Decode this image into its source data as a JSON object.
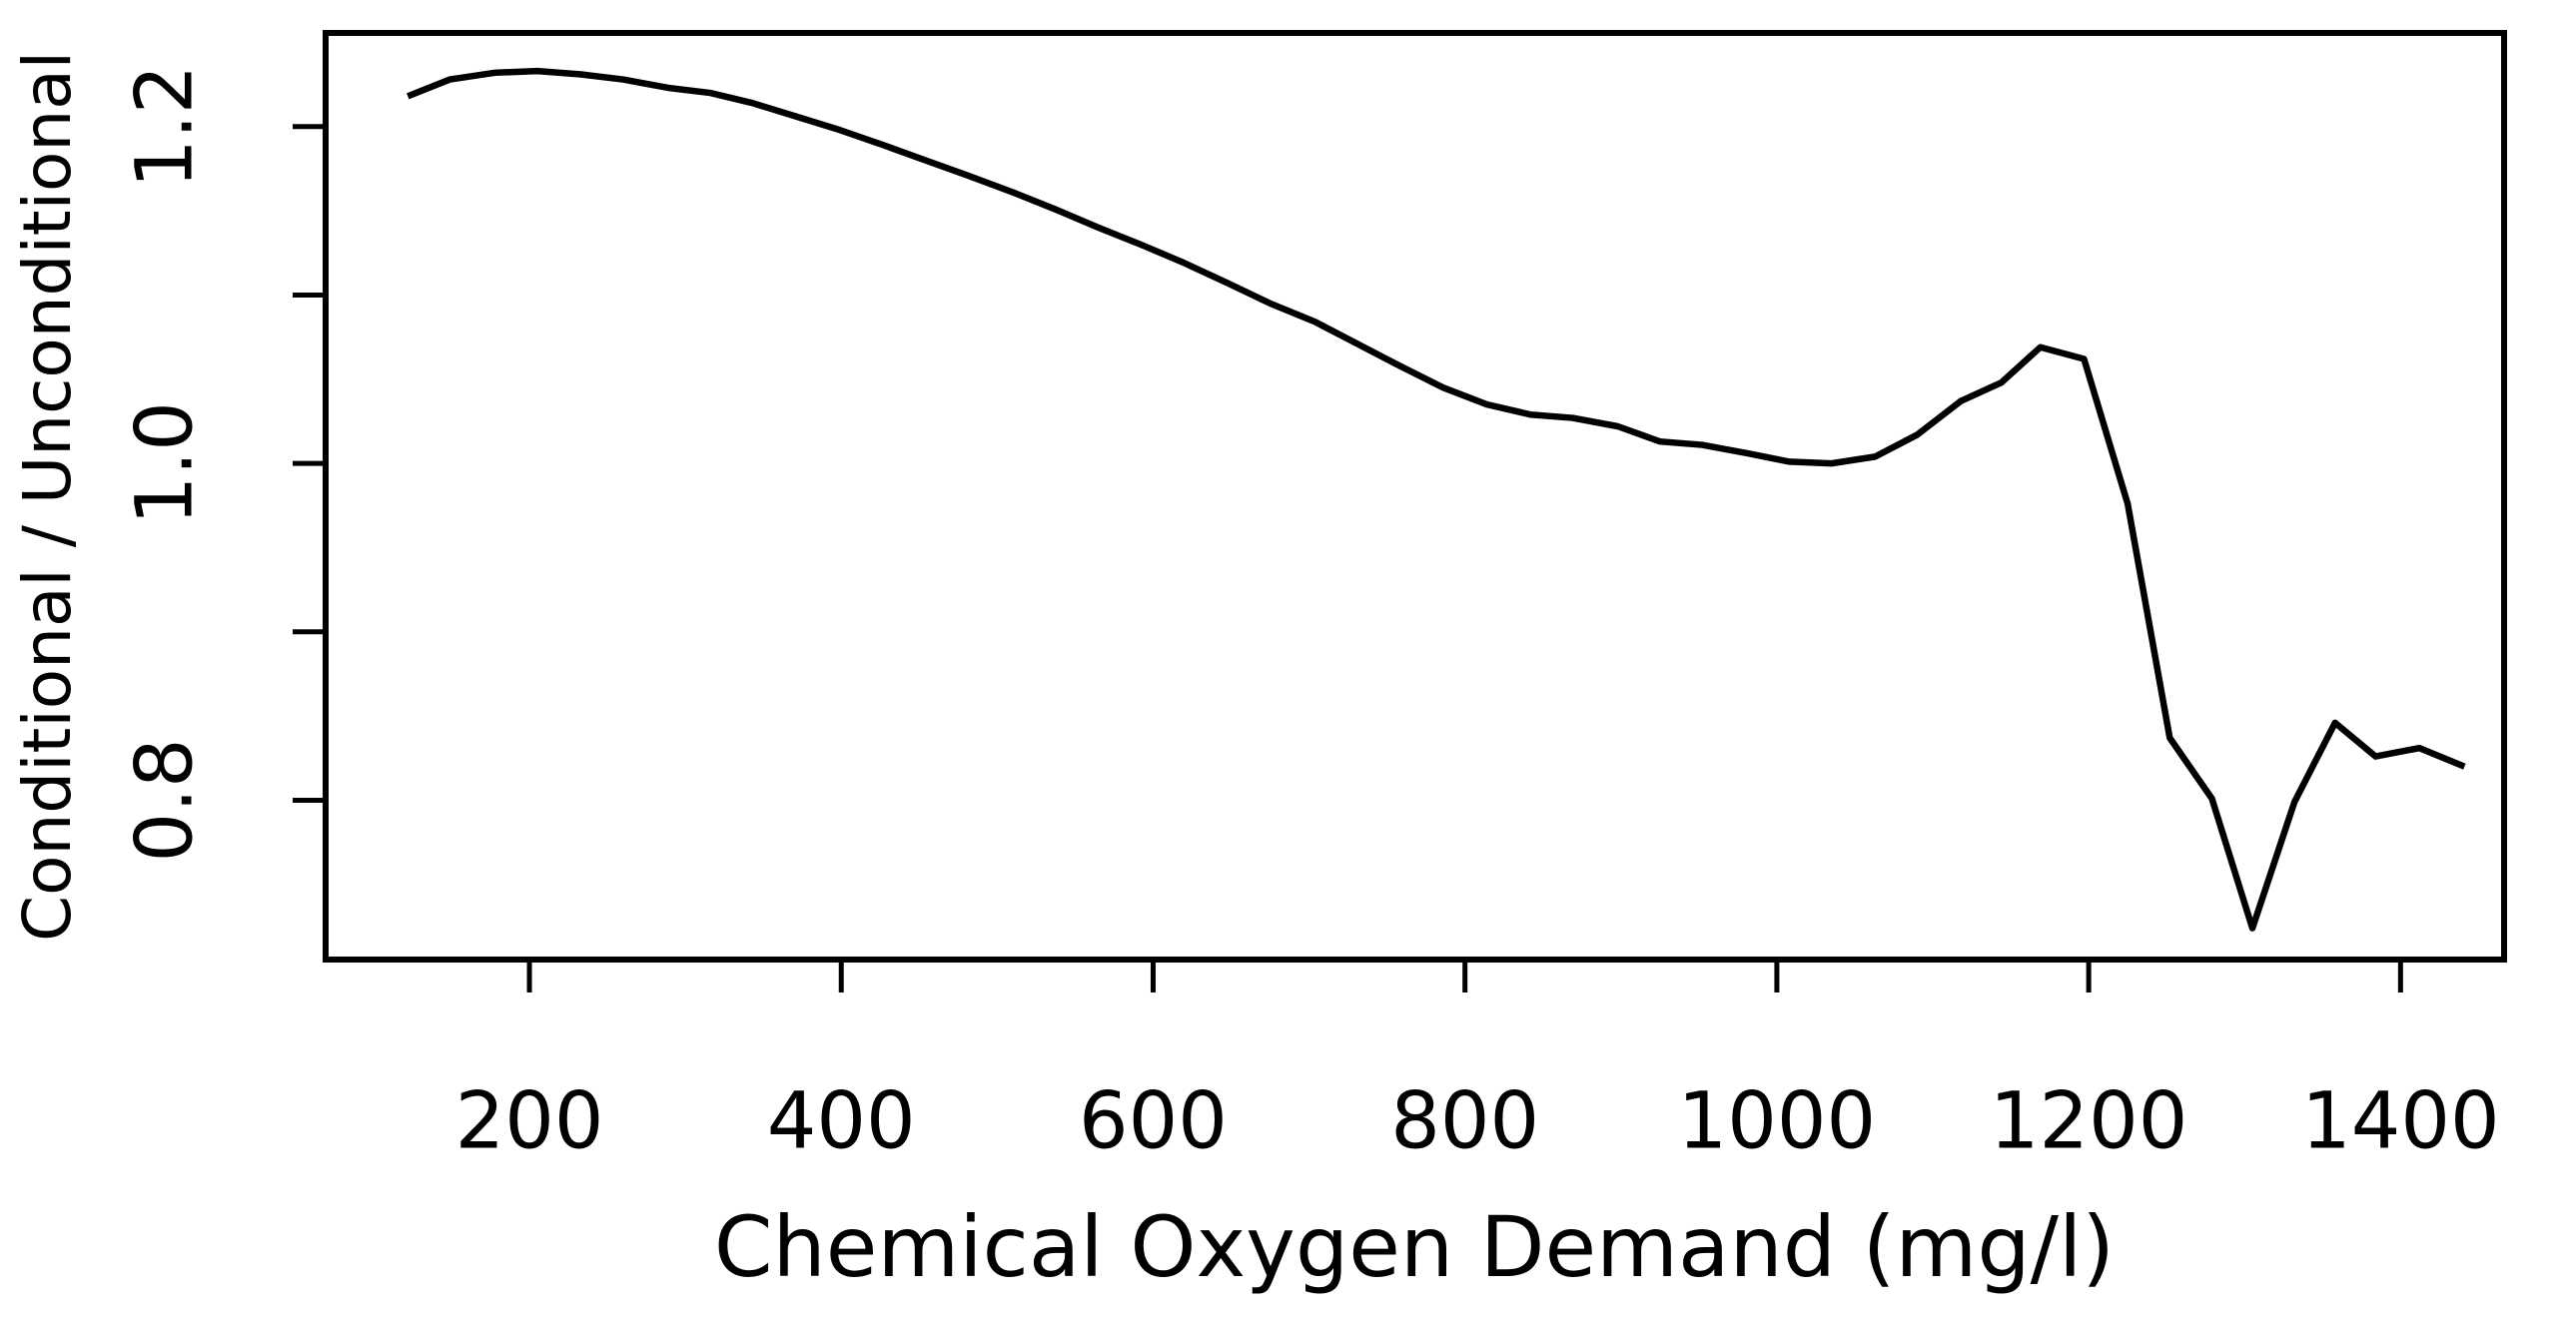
{
  "chart_data": {
    "type": "line",
    "xlabel": "Chemical Oxygen Demand (mg/l)",
    "ylabel": "Conditional / Unconditional",
    "color": "#000000",
    "x": [
      122,
      149,
      178,
      205,
      233,
      260,
      289,
      316,
      343,
      371,
      399,
      427,
      454,
      481,
      510,
      537,
      565,
      592,
      620,
      648,
      675,
      704,
      731,
      758,
      786,
      814,
      842,
      869,
      898,
      925,
      952,
      981,
      1008,
      1035,
      1063,
      1090,
      1118,
      1144,
      1169,
      1197,
      1225,
      1252,
      1279,
      1305,
      1332,
      1358,
      1384,
      1412,
      1441
    ],
    "values": [
      1.218,
      1.228,
      1.232,
      1.233,
      1.231,
      1.228,
      1.223,
      1.22,
      1.214,
      1.206,
      1.198,
      1.189,
      1.18,
      1.171,
      1.161,
      1.151,
      1.14,
      1.13,
      1.119,
      1.107,
      1.095,
      1.084,
      1.071,
      1.058,
      1.045,
      1.035,
      1.029,
      1.027,
      1.022,
      1.013,
      1.011,
      1.006,
      1.001,
      1.0,
      1.004,
      1.017,
      1.037,
      1.048,
      1.069,
      1.062,
      0.976,
      0.837,
      0.801,
      0.724,
      0.799,
      0.846,
      0.826,
      0.831,
      0.82
    ],
    "xlim": [
      69.3,
      1466.4
    ],
    "ylim": [
      0.7054,
      1.2556
    ],
    "xticks": [
      200,
      400,
      600,
      800,
      1000,
      1200,
      1400
    ],
    "yticks": [
      0.8,
      {
        "value": 0.9,
        "label": null
      },
      {
        "value": 1,
        "label": "1.0"
      },
      {
        "value": 1.1,
        "label": null
      },
      1.2
    ]
  }
}
